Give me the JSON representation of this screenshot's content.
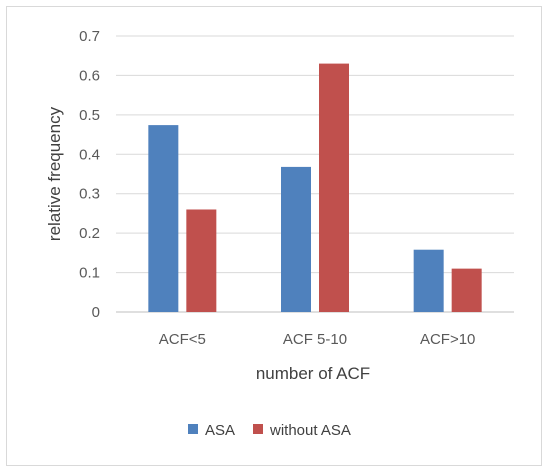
{
  "chart_data": {
    "type": "bar",
    "categories": [
      "ACF<5",
      "ACF 5-10",
      "ACF>10"
    ],
    "series": [
      {
        "name": "ASA",
        "values": [
          0.474,
          0.368,
          0.158
        ],
        "color": "#4f81bd"
      },
      {
        "name": "without ASA",
        "values": [
          0.26,
          0.63,
          0.11
        ],
        "color": "#c0504d"
      }
    ],
    "title": "",
    "xlabel": "number of ACF",
    "ylabel": "relative frequency",
    "ylim": [
      0,
      0.7
    ],
    "yticks": [
      "0",
      "0.1",
      "0.2",
      "0.3",
      "0.4",
      "0.5",
      "0.6",
      "0.7"
    ],
    "grid": true,
    "legend": "bottom"
  }
}
